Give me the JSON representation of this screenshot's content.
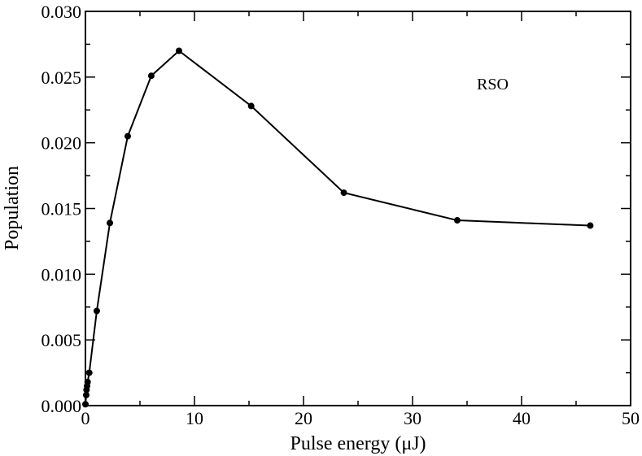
{
  "chart_data": {
    "type": "line",
    "title": "",
    "xlabel": "Pulse energy (μJ)",
    "ylabel": "Population",
    "annotation": "RSO",
    "xlim": [
      0,
      50
    ],
    "ylim": [
      0,
      0.03
    ],
    "x_ticks": [
      0,
      10,
      20,
      30,
      40,
      50
    ],
    "x_tick_labels": [
      "0",
      "10",
      "20",
      "30",
      "40",
      "50"
    ],
    "y_ticks": [
      0,
      0.005,
      0.01,
      0.015,
      0.02,
      0.025,
      0.03
    ],
    "y_tick_labels": [
      "0.000",
      "0.005",
      "0.010",
      "0.015",
      "0.020",
      "0.025",
      "0.030"
    ],
    "grid": false,
    "series": [
      {
        "name": "RSO",
        "color": "#000000",
        "marker": "circle",
        "x": [
          0.0,
          0.07,
          0.1,
          0.15,
          0.2,
          0.35,
          1.04,
          2.24,
          3.88,
          6.04,
          8.58,
          15.2,
          23.7,
          34.1,
          46.3
        ],
        "y": [
          0.0001,
          0.0008,
          0.0012,
          0.0015,
          0.0018,
          0.0025,
          0.0072,
          0.0139,
          0.0205,
          0.0251,
          0.027,
          0.0228,
          0.0162,
          0.0141,
          0.0137
        ]
      }
    ]
  }
}
